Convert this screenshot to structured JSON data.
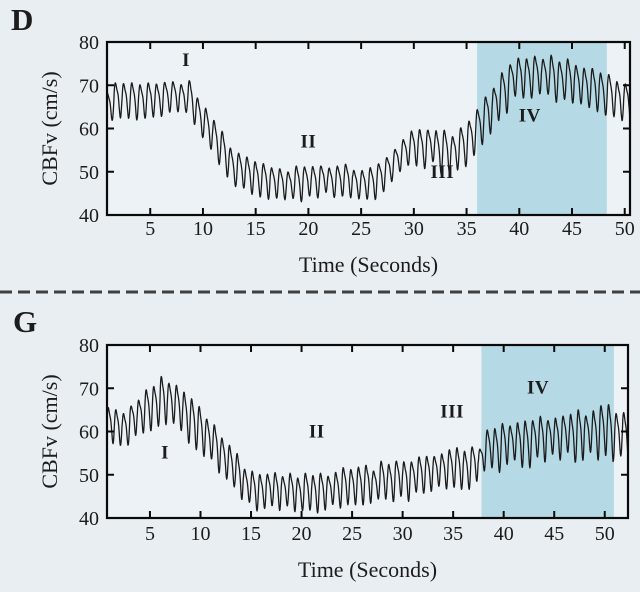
{
  "figure": {
    "bg_color": "#e8eef2",
    "plot_bg_color": "#ecf2f5",
    "shade_color": "#b5d9e5",
    "trace_color": "#1b1b1b",
    "axis_color": "#0a0a0a",
    "divider_color": "#404040",
    "text_color": "#1c1c1c"
  },
  "chart_data": [
    {
      "type": "line",
      "panel_label": "D",
      "xlabel": "Time (Seconds)",
      "ylabel": "CBFv (cm/s)",
      "xlim": [
        0.9,
        50.5
      ],
      "ylim": [
        40,
        80
      ],
      "xticks": [
        5,
        10,
        15,
        20,
        25,
        30,
        35,
        40,
        45,
        50
      ],
      "yticks": [
        40,
        50,
        60,
        70,
        80
      ],
      "shaded_region": {
        "t_start": 36.0,
        "t_end": 48.3
      },
      "region_labels": [
        {
          "text": "I",
          "t": 8.4,
          "v": 75.8
        },
        {
          "text": "II",
          "t": 20.0,
          "v": 57.0
        },
        {
          "text": "III",
          "t": 32.7,
          "v": 50.0
        },
        {
          "text": "IV",
          "t": 41.0,
          "v": 63.0
        }
      ],
      "waveform": {
        "kind": "pulsatile-oscillation",
        "period_s": 0.78,
        "envelope_t_mid_amp": [
          [
            0.9,
            66,
            4.2
          ],
          [
            2,
            66.5,
            4.4
          ],
          [
            4,
            67,
            4.5
          ],
          [
            6,
            67,
            4.6
          ],
          [
            8,
            67.5,
            4.6
          ],
          [
            8.8,
            67.5,
            4.4
          ],
          [
            9.5,
            64,
            4.4
          ],
          [
            11,
            58,
            4.6
          ],
          [
            13,
            51,
            4.4
          ],
          [
            15,
            48.5,
            4.3
          ],
          [
            18,
            47.5,
            4.4
          ],
          [
            20,
            48,
            4.1
          ],
          [
            23,
            48,
            4.1
          ],
          [
            26,
            48,
            4.2
          ],
          [
            27.5,
            50,
            4.5
          ],
          [
            29,
            54,
            4.6
          ],
          [
            30.5,
            56.5,
            5.0
          ],
          [
            32,
            56,
            5.0
          ],
          [
            33.5,
            54.5,
            5.0
          ],
          [
            35,
            57,
            5.4
          ],
          [
            36.5,
            61,
            5.5
          ],
          [
            38,
            67,
            5.8
          ],
          [
            39.5,
            71.5,
            5.5
          ],
          [
            41,
            72,
            5.6
          ],
          [
            42.5,
            72.5,
            5.5
          ],
          [
            44,
            71.5,
            5.4
          ],
          [
            45.5,
            71,
            5.0
          ],
          [
            47,
            69.5,
            5.0
          ],
          [
            48.3,
            68.5,
            5.0
          ],
          [
            49.3,
            66.5,
            5.0
          ],
          [
            50.5,
            67,
            5.5
          ]
        ]
      }
    },
    {
      "type": "line",
      "panel_label": "G",
      "xlabel": "Time (Seconds)",
      "ylabel": "CBFv (cm/s)",
      "xlim": [
        0.75,
        52.3
      ],
      "ylim": [
        40,
        80
      ],
      "xticks": [
        5,
        10,
        15,
        20,
        25,
        30,
        35,
        40,
        45,
        50
      ],
      "yticks": [
        40,
        50,
        60,
        70,
        80
      ],
      "shaded_region": {
        "t_start": 37.8,
        "t_end": 50.9
      },
      "region_labels": [
        {
          "text": "I",
          "t": 6.5,
          "v": 55.2
        },
        {
          "text": "II",
          "t": 21.5,
          "v": 60.0
        },
        {
          "text": "III",
          "t": 34.9,
          "v": 64.6
        },
        {
          "text": "IV",
          "t": 43.4,
          "v": 70.2
        }
      ],
      "waveform": {
        "kind": "pulsatile-oscillation",
        "period_s": 0.75,
        "envelope_t_mid_amp": [
          [
            0.75,
            62,
            4.2
          ],
          [
            2,
            61,
            4.5
          ],
          [
            3,
            62,
            4.6
          ],
          [
            4.5,
            65.5,
            5.5
          ],
          [
            6,
            67.5,
            6.0
          ],
          [
            7,
            67.5,
            5.8
          ],
          [
            8,
            65.5,
            5.5
          ],
          [
            9.5,
            62.5,
            5.8
          ],
          [
            11,
            57.5,
            5.5
          ],
          [
            12.5,
            54.5,
            5.5
          ],
          [
            13.5,
            51,
            5.0
          ],
          [
            14.5,
            48.5,
            4.6
          ],
          [
            16,
            46.5,
            4.4
          ],
          [
            18,
            46.5,
            4.5
          ],
          [
            20,
            46.5,
            4.4
          ],
          [
            22,
            46.5,
            4.4
          ],
          [
            24,
            47.5,
            4.5
          ],
          [
            26,
            48,
            4.5
          ],
          [
            28,
            49,
            4.5
          ],
          [
            30,
            49.5,
            4.6
          ],
          [
            32,
            50,
            4.6
          ],
          [
            34,
            51,
            5.0
          ],
          [
            35,
            51.5,
            5.2
          ],
          [
            36.5,
            51.5,
            5.0
          ],
          [
            37.6,
            53,
            5.0
          ],
          [
            38.2,
            56.5,
            5.5
          ],
          [
            40,
            57,
            5.5
          ],
          [
            42,
            58,
            5.5
          ],
          [
            44,
            58.5,
            5.6
          ],
          [
            46,
            59.5,
            6.0
          ],
          [
            48,
            60,
            6.0
          ],
          [
            49.5,
            60.5,
            6.4
          ],
          [
            50.5,
            61,
            6.8
          ],
          [
            51.5,
            60,
            6.4
          ],
          [
            52.3,
            59.5,
            6.0
          ]
        ]
      }
    }
  ]
}
